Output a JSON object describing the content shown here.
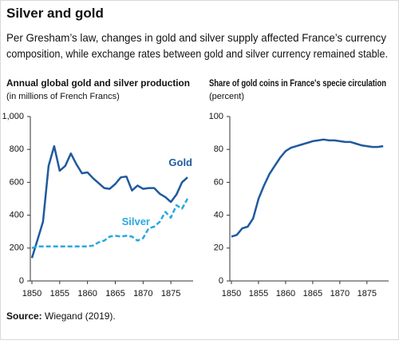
{
  "header": {
    "title": "Silver and gold",
    "subtitle": [
      "Per Gresham’s law, changes in gold and silver supply affected France’s currency",
      "composition, while exchange rates between gold and silver currency remained stable."
    ]
  },
  "chart_data": [
    {
      "type": "line",
      "title": "Annual global gold and silver production",
      "subtitle": "(in millions of French Francs)",
      "x": [
        1850,
        1851,
        1852,
        1853,
        1854,
        1855,
        1856,
        1857,
        1858,
        1859,
        1860,
        1861,
        1862,
        1863,
        1864,
        1865,
        1866,
        1867,
        1868,
        1869,
        1870,
        1871,
        1872,
        1873,
        1874,
        1875,
        1876,
        1877,
        1878
      ],
      "series": [
        {
          "name": "Gold",
          "color": "#1f5a9e",
          "dash": false,
          "values": [
            140,
            250,
            360,
            700,
            820,
            670,
            700,
            775,
            710,
            655,
            660,
            625,
            595,
            565,
            560,
            590,
            630,
            635,
            550,
            580,
            560,
            565,
            565,
            530,
            510,
            480,
            525,
            600,
            630
          ]
        },
        {
          "name": "Silver",
          "color": "#2aa8e0",
          "dash": true,
          "values": [
            200,
            210,
            210,
            210,
            210,
            210,
            210,
            210,
            210,
            210,
            210,
            215,
            235,
            245,
            270,
            275,
            270,
            275,
            270,
            245,
            260,
            320,
            330,
            360,
            420,
            385,
            460,
            440,
            500
          ]
        }
      ],
      "xlim": [
        1850,
        1879
      ],
      "xticks": [
        1850,
        1855,
        1860,
        1865,
        1870,
        1875
      ],
      "ylim": [
        0,
        1000
      ],
      "yticks": [
        0,
        200,
        400,
        600,
        800,
        {
          "value": 1000,
          "label": "1,000"
        }
      ]
    },
    {
      "type": "line",
      "title": "Share of gold coins in France's specie circulation",
      "subtitle": "(percent)",
      "x": [
        1850,
        1851,
        1852,
        1853,
        1854,
        1855,
        1856,
        1857,
        1858,
        1859,
        1860,
        1861,
        1862,
        1863,
        1864,
        1865,
        1866,
        1867,
        1868,
        1869,
        1870,
        1871,
        1872,
        1873,
        1874,
        1875,
        1876,
        1877,
        1878
      ],
      "series": [
        {
          "color": "#1f5a9e",
          "dash": false,
          "values": [
            27,
            28,
            32,
            33,
            38,
            50,
            58,
            65,
            70,
            75,
            79,
            81,
            82,
            83,
            84,
            85,
            85.5,
            86,
            85.5,
            85.5,
            85,
            84.5,
            84.5,
            83.5,
            82.5,
            82,
            81.5,
            81.5,
            82
          ]
        }
      ],
      "xlim": [
        1850,
        1879
      ],
      "xticks": [
        1850,
        1855,
        1860,
        1865,
        1870,
        1875
      ],
      "ylim": [
        0,
        100
      ],
      "yticks": [
        0,
        20,
        40,
        60,
        80,
        100
      ]
    }
  ],
  "source": {
    "label": "Source:",
    "text": "Wiegand (2019)."
  }
}
